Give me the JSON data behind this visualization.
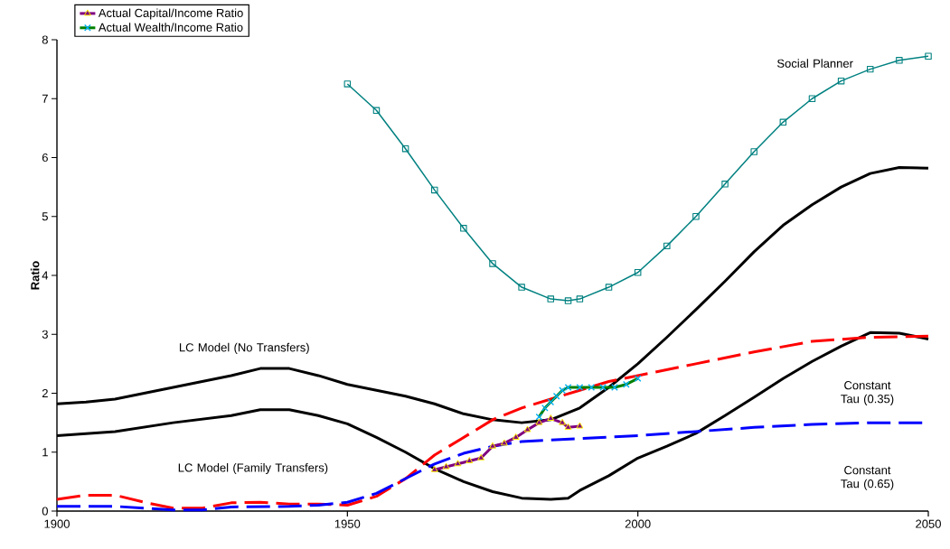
{
  "chart_data": {
    "type": "line",
    "ylabel": "Ratio",
    "xlim": [
      1900,
      2050
    ],
    "ylim": [
      0,
      8
    ],
    "xticks": [
      1900,
      1950,
      2000,
      2050
    ],
    "yticks": [
      0,
      1,
      2,
      3,
      4,
      5,
      6,
      7,
      8
    ],
    "grid": false,
    "legend": "top left",
    "series": [
      {
        "color": "#000000",
        "marker": "none",
        "x": [
          1900,
          1905,
          1910,
          1915,
          1920,
          1925,
          1930,
          1935,
          1940,
          1945,
          1950,
          1955,
          1960,
          1965,
          1970,
          1975,
          1980,
          1985,
          1990,
          1995,
          2000,
          2005,
          2010,
          2015,
          2020,
          2025,
          2030,
          2035,
          2040,
          2045,
          2050
        ],
        "values": [
          1.82,
          1.85,
          1.9,
          2.0,
          2.1,
          2.2,
          2.3,
          2.42,
          2.42,
          2.3,
          2.15,
          2.05,
          1.95,
          1.82,
          1.65,
          1.55,
          1.5,
          1.55,
          1.75,
          2.1,
          2.5,
          2.95,
          3.42,
          3.9,
          4.4,
          4.85,
          5.2,
          5.5,
          5.73,
          5.83,
          5.82
        ]
      },
      {
        "color": "#000000",
        "marker": "none",
        "x": [
          1900,
          1910,
          1920,
          1930,
          1935,
          1940,
          1945,
          1950,
          1955,
          1960,
          1965,
          1970,
          1975,
          1980,
          1985,
          1988,
          1990,
          1995,
          2000,
          2005,
          2010,
          2015,
          2020,
          2025,
          2030,
          2035,
          2040,
          2045,
          2050
        ],
        "values": [
          1.28,
          1.35,
          1.5,
          1.62,
          1.72,
          1.72,
          1.62,
          1.48,
          1.25,
          1.0,
          0.72,
          0.5,
          0.33,
          0.22,
          0.2,
          0.22,
          0.35,
          0.6,
          0.9,
          1.1,
          1.32,
          1.62,
          1.93,
          2.25,
          2.54,
          2.8,
          3.03,
          3.02,
          2.92
        ]
      },
      {
        "color": "#ff0000",
        "marker": "none",
        "line_style": "dashed",
        "x": [
          1900,
          1905,
          1910,
          1915,
          1920,
          1925,
          1930,
          1935,
          1940,
          1945,
          1950,
          1955,
          1960,
          1965,
          1970,
          1975,
          1980,
          1985,
          1990,
          1995,
          2000,
          2010,
          2020,
          2030,
          2040,
          2050
        ],
        "values": [
          0.2,
          0.27,
          0.27,
          0.15,
          0.05,
          0.05,
          0.14,
          0.15,
          0.12,
          0.12,
          0.1,
          0.25,
          0.55,
          0.95,
          1.25,
          1.55,
          1.75,
          1.9,
          2.05,
          2.2,
          2.3,
          2.5,
          2.7,
          2.88,
          2.95,
          2.97
        ]
      },
      {
        "color": "#0000ff",
        "marker": "none",
        "line_style": "dashed",
        "x": [
          1900,
          1910,
          1915,
          1920,
          1925,
          1930,
          1940,
          1945,
          1950,
          1955,
          1960,
          1965,
          1970,
          1975,
          1980,
          1990,
          2000,
          2010,
          2020,
          2030,
          2040,
          2050
        ],
        "values": [
          0.08,
          0.08,
          0.05,
          0.02,
          0.02,
          0.07,
          0.08,
          0.1,
          0.15,
          0.3,
          0.55,
          0.8,
          0.98,
          1.1,
          1.18,
          1.23,
          1.28,
          1.35,
          1.42,
          1.47,
          1.5,
          1.5
        ]
      },
      {
        "color": "#008080",
        "marker": "square",
        "x": [
          1950,
          1955,
          1960,
          1965,
          1970,
          1975,
          1980,
          1985,
          1988,
          1990,
          1995,
          2000,
          2005,
          2010,
          2015,
          2020,
          2025,
          2030,
          2035,
          2040,
          2045,
          2050
        ],
        "values": [
          7.25,
          6.8,
          6.15,
          5.45,
          4.8,
          4.2,
          3.8,
          3.6,
          3.57,
          3.6,
          3.8,
          4.05,
          4.5,
          5.0,
          5.55,
          6.1,
          6.6,
          7.0,
          7.3,
          7.5,
          7.65,
          7.72
        ]
      },
      {
        "name": "Actual Capital/Income Ratio",
        "color": "#800080",
        "marker": "triangle",
        "x": [
          1965,
          1967,
          1969,
          1971,
          1973,
          1975,
          1977,
          1979,
          1981,
          1983,
          1985,
          1987,
          1988,
          1990
        ],
        "values": [
          0.7,
          0.75,
          0.8,
          0.85,
          0.9,
          1.1,
          1.15,
          1.25,
          1.38,
          1.5,
          1.57,
          1.5,
          1.42,
          1.44
        ]
      },
      {
        "name": "Actual Wealth/Income Ratio",
        "color": "#008000",
        "marker": "cross",
        "x": [
          1983,
          1984,
          1985,
          1986,
          1987,
          1988,
          1990,
          1992,
          1994,
          1996,
          1998,
          2000
        ],
        "values": [
          1.6,
          1.75,
          1.85,
          1.95,
          2.05,
          2.1,
          2.1,
          2.1,
          2.1,
          2.1,
          2.15,
          2.25
        ]
      }
    ],
    "annotations": [
      "LC Model (No Transfers)",
      "LC Model (Family Transfers)",
      "Social Planner",
      "Constant Tau (0.35)",
      "Constant Tau (0.65)"
    ]
  }
}
